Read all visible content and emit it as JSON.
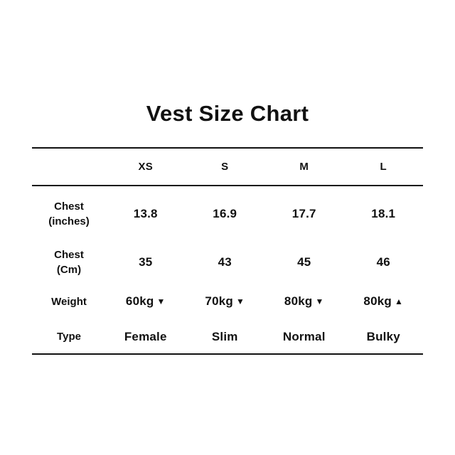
{
  "title": "Vest Size Chart",
  "table": {
    "headers": [
      "XS",
      "S",
      "M",
      "L"
    ],
    "rows": [
      {
        "label": "Chest\n(inches)",
        "values": [
          "13.8",
          "16.9",
          "17.7",
          "18.1"
        ]
      },
      {
        "label": "Chest\n(Cm)",
        "values": [
          "35",
          "43",
          "45",
          "46"
        ]
      },
      {
        "label": "Weight",
        "values": [
          "60kg",
          "70kg",
          "80kg",
          "80kg"
        ],
        "arrows": [
          "▼",
          "▼",
          "▼",
          "▲"
        ]
      },
      {
        "label": "Type",
        "values": [
          "Female",
          "Slim",
          "Normal",
          "Bulky"
        ]
      }
    ]
  },
  "chart_data": {
    "type": "table",
    "title": "Vest Size Chart",
    "columns": [
      "",
      "XS",
      "S",
      "M",
      "L"
    ],
    "rows": [
      [
        "Chest (inches)",
        "13.8",
        "16.9",
        "17.7",
        "18.1"
      ],
      [
        "Chest (Cm)",
        "35",
        "43",
        "45",
        "46"
      ],
      [
        "Weight",
        "60kg ▼",
        "70kg ▼",
        "80kg ▼",
        "80kg ▲"
      ],
      [
        "Type",
        "Female",
        "Slim",
        "Normal",
        "Bulky"
      ]
    ]
  }
}
